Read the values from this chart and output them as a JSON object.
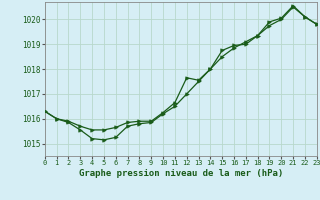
{
  "title": "Graphe pression niveau de la mer (hPa)",
  "bg_color": "#d6eef5",
  "line_color": "#1a5c1a",
  "grid_color": "#b8d8cc",
  "x_min": 0,
  "x_max": 23,
  "y_min": 1014.5,
  "y_max": 1020.7,
  "series1_x": [
    0,
    1,
    2,
    3,
    4,
    5,
    6,
    7,
    8,
    9,
    10,
    11,
    12,
    13,
    14,
    15,
    16,
    17,
    18,
    19,
    20,
    21,
    22,
    23
  ],
  "series1_y": [
    1016.3,
    1016.0,
    1015.85,
    1015.55,
    1015.2,
    1015.15,
    1015.25,
    1015.7,
    1015.8,
    1015.85,
    1016.2,
    1016.5,
    1017.0,
    1017.5,
    1018.0,
    1018.5,
    1018.85,
    1019.1,
    1019.35,
    1019.75,
    1020.0,
    1020.5,
    1020.1,
    1019.8
  ],
  "series2_x": [
    0,
    1,
    2,
    3,
    4,
    5,
    6,
    7,
    8,
    9,
    10,
    11,
    12,
    13,
    14,
    15,
    16,
    17,
    18,
    19,
    20,
    21,
    22,
    23
  ],
  "series2_y": [
    1016.3,
    1016.0,
    1015.9,
    1015.7,
    1015.55,
    1015.55,
    1015.65,
    1015.85,
    1015.9,
    1015.9,
    1016.25,
    1016.65,
    1017.65,
    1017.55,
    1018.0,
    1018.75,
    1018.95,
    1019.0,
    1019.35,
    1019.9,
    1020.05,
    1020.55,
    1020.1,
    1019.8
  ],
  "yticks": [
    1015,
    1016,
    1017,
    1018,
    1019,
    1020
  ],
  "xticks": [
    0,
    1,
    2,
    3,
    4,
    5,
    6,
    7,
    8,
    9,
    10,
    11,
    12,
    13,
    14,
    15,
    16,
    17,
    18,
    19,
    20,
    21,
    22,
    23
  ]
}
